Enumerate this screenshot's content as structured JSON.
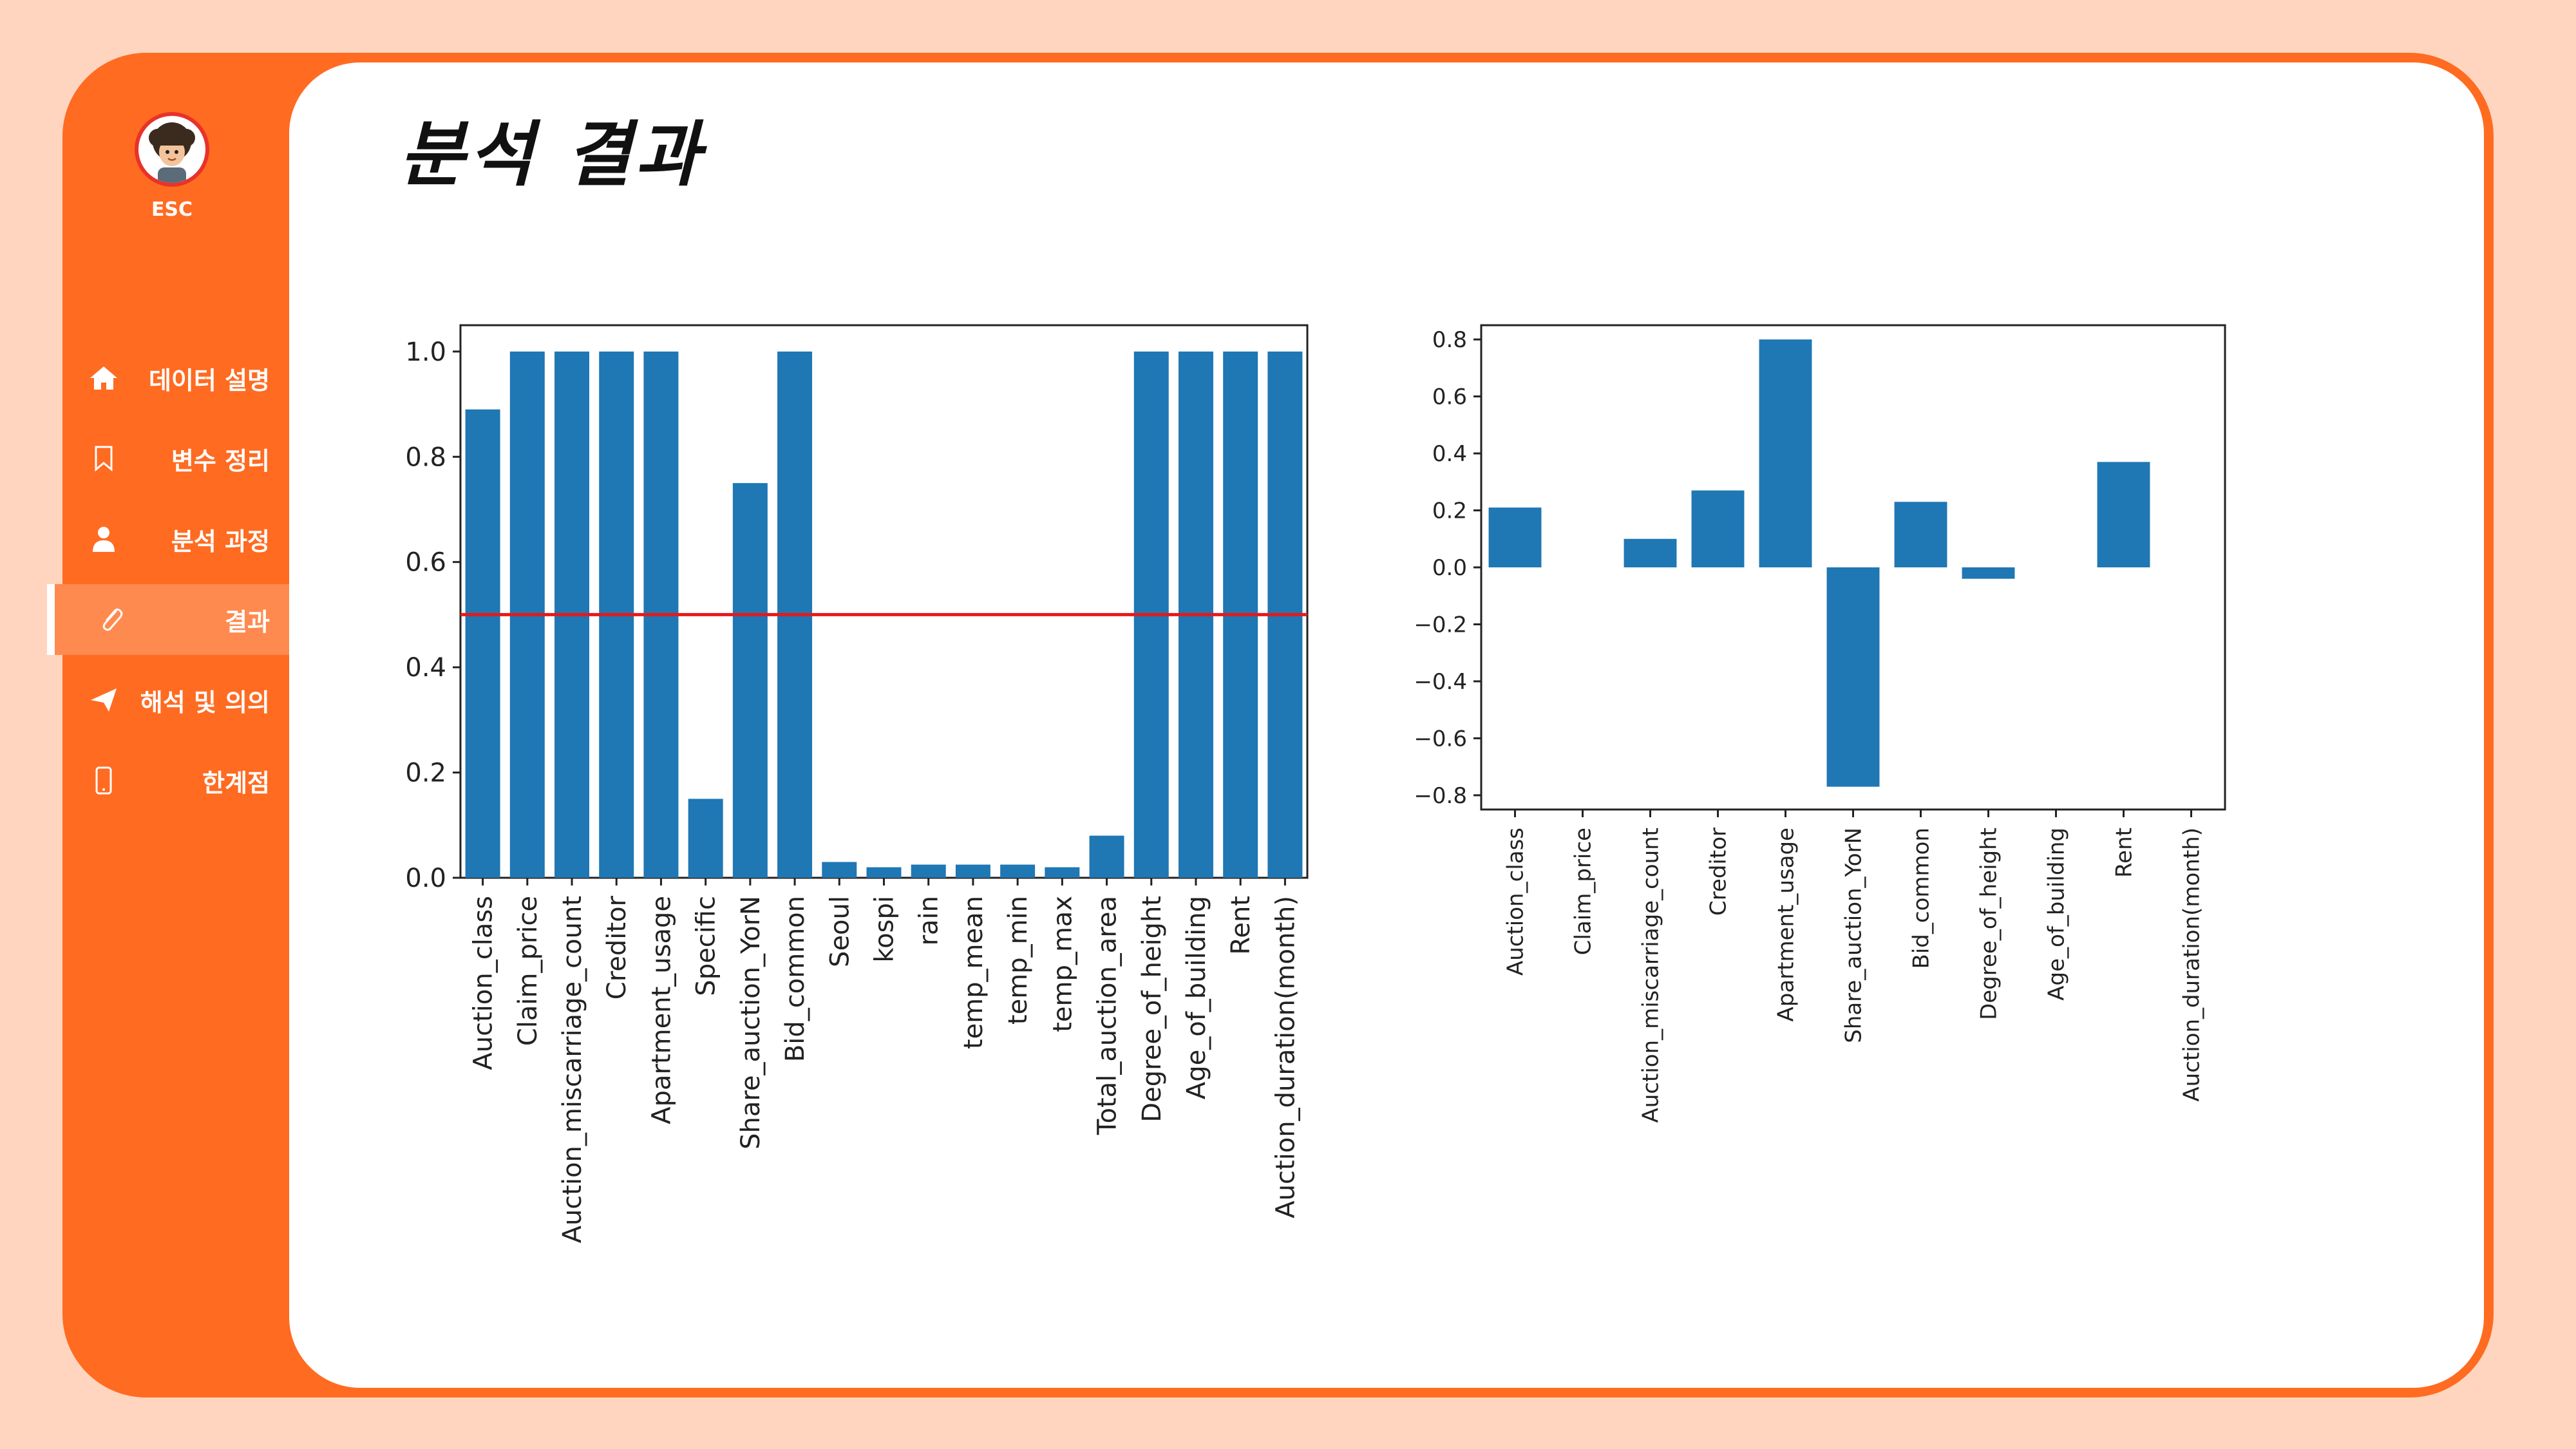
{
  "sidebar": {
    "brand": "ESC",
    "items": [
      {
        "label": "데이터 설명",
        "icon": "home-icon"
      },
      {
        "label": "변수 정리",
        "icon": "bookmark-icon"
      },
      {
        "label": "분석 과정",
        "icon": "user-icon"
      },
      {
        "label": "결과",
        "icon": "paperclip-icon",
        "active": true
      },
      {
        "label": "해석 및 의의",
        "icon": "send-icon"
      },
      {
        "label": "한계점",
        "icon": "mobile-icon"
      }
    ]
  },
  "main": {
    "title": "분석 결과"
  },
  "colors": {
    "accent": "#ff6b21",
    "bar": "#1f77b4",
    "threshold": "#e41a1c"
  },
  "chart_data": [
    {
      "type": "bar",
      "categories": [
        "Auction_class",
        "Claim_price",
        "Auction_miscarriage_count",
        "Creditor",
        "Apartment_usage",
        "Specific",
        "Share_auction_YorN",
        "Bid_common",
        "Seoul",
        "kospi",
        "rain",
        "temp_mean",
        "temp_min",
        "temp_max",
        "Total_auction_area",
        "Degree_of_height",
        "Age_of_building",
        "Rent",
        "Auction_duration(month)"
      ],
      "values": [
        0.89,
        1.0,
        1.0,
        1.0,
        1.0,
        0.15,
        0.75,
        1.0,
        0.03,
        0.02,
        0.025,
        0.025,
        0.025,
        0.02,
        0.08,
        1.0,
        1.0,
        1.0,
        1.0
      ],
      "ylim": [
        0,
        1.05
      ],
      "yticks": [
        "0.0",
        "0.2",
        "0.4",
        "0.6",
        "0.8",
        "1.0"
      ],
      "threshold": 0.5,
      "title": "",
      "xlabel": "",
      "ylabel": ""
    },
    {
      "type": "bar",
      "categories": [
        "Auction_class",
        "Claim_price",
        "Auction_miscarriage_count",
        "Creditor",
        "Apartment_usage",
        "Share_auction_YorN",
        "Bid_common",
        "Degree_of_height",
        "Age_of_building",
        "Rent",
        "Auction_duration(month)"
      ],
      "values": [
        0.21,
        0.0,
        0.1,
        0.27,
        0.8,
        -0.77,
        0.23,
        -0.04,
        0.0,
        0.37,
        0.0
      ],
      "ylim": [
        -0.85,
        0.85
      ],
      "yticks": [
        "−0.8",
        "−0.6",
        "−0.4",
        "−0.2",
        "0.0",
        "0.2",
        "0.4",
        "0.6",
        "0.8"
      ],
      "title": "",
      "xlabel": "",
      "ylabel": ""
    }
  ]
}
